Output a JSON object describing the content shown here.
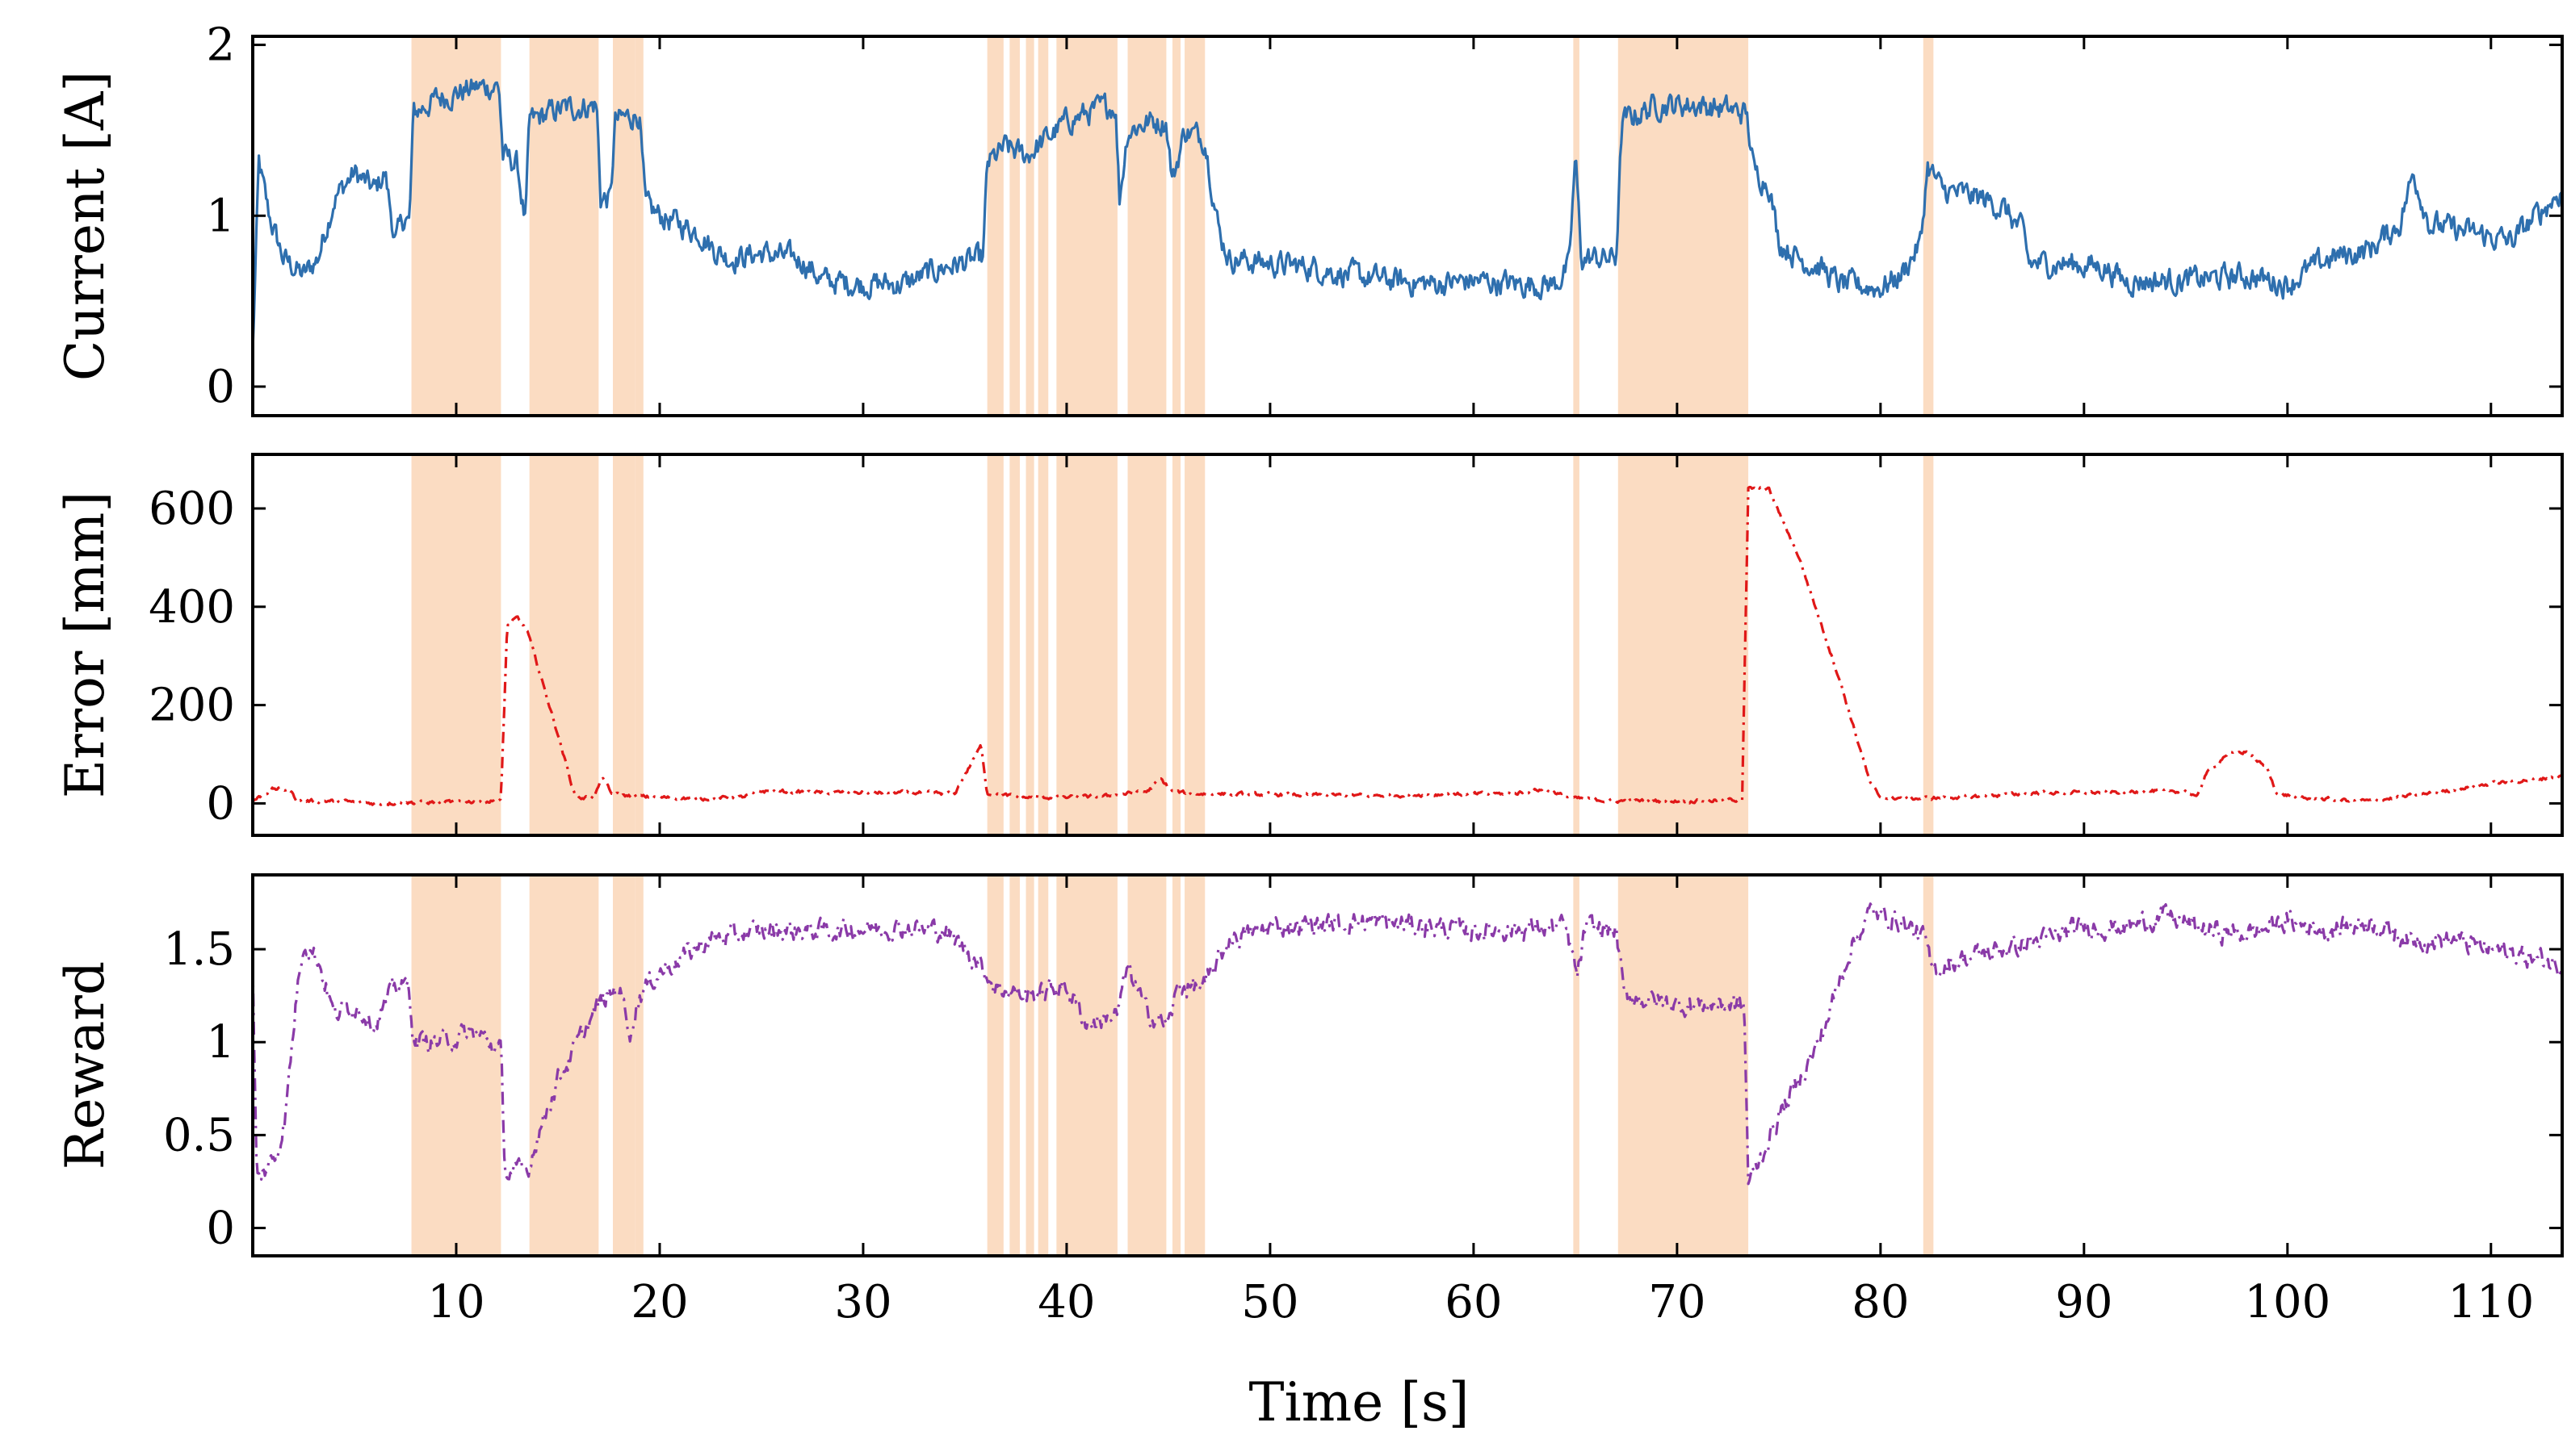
{
  "chart_data": {
    "type": "line",
    "xlabel": "Time [s]",
    "xlim": [
      0,
      113.5
    ],
    "x_ticks": [
      10,
      20,
      30,
      40,
      50,
      60,
      70,
      80,
      90,
      100,
      110
    ],
    "highlight_intervals": [
      [
        7.8,
        12.2
      ],
      [
        13.6,
        17.0
      ],
      [
        17.7,
        18.8
      ],
      [
        18.8,
        19.2
      ],
      [
        36.1,
        36.9
      ],
      [
        37.2,
        37.7
      ],
      [
        38.0,
        38.4
      ],
      [
        38.6,
        39.1
      ],
      [
        39.5,
        42.5
      ],
      [
        43.0,
        44.9
      ],
      [
        45.2,
        45.6
      ],
      [
        45.8,
        46.8
      ],
      [
        64.9,
        65.2
      ],
      [
        67.1,
        73.5
      ],
      [
        82.1,
        82.6
      ]
    ],
    "panels": [
      {
        "name": "current",
        "ylabel": "Current [A]",
        "ylim": [
          -0.17,
          2.05
        ],
        "y_ticks": [
          0,
          1,
          2
        ],
        "y_tick_labels": [
          "0",
          "1",
          "2"
        ],
        "series": {
          "name": "Current",
          "color": "#2e6fae",
          "dash": "",
          "noise": 0.06,
          "points": [
            [
              0,
              0.2
            ],
            [
              0.3,
              1.3
            ],
            [
              0.8,
              1.0
            ],
            [
              1.5,
              0.75
            ],
            [
              2.5,
              0.65
            ],
            [
              3.2,
              0.75
            ],
            [
              4.0,
              1.1
            ],
            [
              5.0,
              1.25
            ],
            [
              6.0,
              1.15
            ],
            [
              6.5,
              1.25
            ],
            [
              7.0,
              0.85
            ],
            [
              7.5,
              1.0
            ],
            [
              7.7,
              0.95
            ],
            [
              7.9,
              1.6
            ],
            [
              9,
              1.68
            ],
            [
              10,
              1.72
            ],
            [
              11,
              1.75
            ],
            [
              12.1,
              1.76
            ],
            [
              12.3,
              1.35
            ],
            [
              13.0,
              1.3
            ],
            [
              13.4,
              0.95
            ],
            [
              13.6,
              1.55
            ],
            [
              15,
              1.62
            ],
            [
              16.9,
              1.65
            ],
            [
              17.1,
              1.1
            ],
            [
              17.6,
              1.1
            ],
            [
              17.8,
              1.55
            ],
            [
              19.0,
              1.6
            ],
            [
              19.3,
              1.05
            ],
            [
              20,
              1.0
            ],
            [
              21,
              0.95
            ],
            [
              22,
              0.9
            ],
            [
              22.7,
              0.8
            ],
            [
              23.5,
              0.75
            ],
            [
              25,
              0.78
            ],
            [
              27,
              0.74
            ],
            [
              28,
              0.62
            ],
            [
              30,
              0.6
            ],
            [
              32,
              0.6
            ],
            [
              34,
              0.7
            ],
            [
              35.9,
              0.75
            ],
            [
              36.1,
              1.3
            ],
            [
              37,
              1.4
            ],
            [
              38,
              1.35
            ],
            [
              39,
              1.45
            ],
            [
              40,
              1.55
            ],
            [
              41,
              1.6
            ],
            [
              42.4,
              1.65
            ],
            [
              42.6,
              1.1
            ],
            [
              43,
              1.5
            ],
            [
              44,
              1.55
            ],
            [
              44.9,
              1.55
            ],
            [
              45.2,
              1.2
            ],
            [
              45.8,
              1.5
            ],
            [
              46.8,
              1.45
            ],
            [
              47.5,
              0.9
            ],
            [
              48,
              0.75
            ],
            [
              50,
              0.72
            ],
            [
              52,
              0.7
            ],
            [
              54,
              0.65
            ],
            [
              56,
              0.62
            ],
            [
              58,
              0.6
            ],
            [
              60,
              0.62
            ],
            [
              62,
              0.6
            ],
            [
              64,
              0.6
            ],
            [
              64.7,
              0.7
            ],
            [
              65.0,
              1.35
            ],
            [
              65.3,
              0.75
            ],
            [
              67.0,
              0.75
            ],
            [
              67.3,
              1.55
            ],
            [
              69,
              1.65
            ],
            [
              71,
              1.65
            ],
            [
              73.4,
              1.6
            ],
            [
              73.8,
              1.25
            ],
            [
              74.5,
              1.2
            ],
            [
              75.0,
              0.85
            ],
            [
              76,
              0.75
            ],
            [
              77,
              0.7
            ],
            [
              78,
              0.6
            ],
            [
              80,
              0.58
            ],
            [
              81,
              0.65
            ],
            [
              82.0,
              0.85
            ],
            [
              82.3,
              1.3
            ],
            [
              83,
              1.15
            ],
            [
              85,
              1.1
            ],
            [
              86,
              1.05
            ],
            [
              87,
              0.9
            ],
            [
              87.3,
              0.72
            ],
            [
              89,
              0.72
            ],
            [
              91,
              0.7
            ],
            [
              92,
              0.62
            ],
            [
              95,
              0.62
            ],
            [
              98,
              0.65
            ],
            [
              100,
              0.6
            ],
            [
              102,
              0.75
            ],
            [
              104,
              0.8
            ],
            [
              105.5,
              0.95
            ],
            [
              106.2,
              1.25
            ],
            [
              107,
              0.95
            ],
            [
              109,
              0.9
            ],
            [
              111,
              0.85
            ],
            [
              113.5,
              1.15
            ]
          ]
        }
      },
      {
        "name": "error",
        "ylabel": "Error [mm]",
        "ylim": [
          -65,
          710
        ],
        "y_ticks": [
          0,
          200,
          400,
          600
        ],
        "y_tick_labels": [
          "0",
          "200",
          "400",
          "600"
        ],
        "series": {
          "name": "Error",
          "color": "#e01818",
          "dash": "14 7 3 7",
          "noise": 3,
          "points": [
            [
              0,
              5
            ],
            [
              1,
              30
            ],
            [
              1.8,
              28
            ],
            [
              2.2,
              5
            ],
            [
              4,
              5
            ],
            [
              6,
              0
            ],
            [
              8,
              2
            ],
            [
              10,
              3
            ],
            [
              12.2,
              5
            ],
            [
              12.5,
              360
            ],
            [
              13,
              378
            ],
            [
              13.5,
              350
            ],
            [
              14,
              280
            ],
            [
              15,
              140
            ],
            [
              15.8,
              20
            ],
            [
              16.2,
              10
            ],
            [
              16.8,
              15
            ],
            [
              17.2,
              55
            ],
            [
              17.6,
              20
            ],
            [
              18.5,
              15
            ],
            [
              20,
              12
            ],
            [
              22,
              10
            ],
            [
              24,
              12
            ],
            [
              25,
              25
            ],
            [
              28,
              22
            ],
            [
              32,
              22
            ],
            [
              34.5,
              20
            ],
            [
              35.3,
              80
            ],
            [
              35.8,
              118
            ],
            [
              36.1,
              20
            ],
            [
              38,
              12
            ],
            [
              40,
              12
            ],
            [
              42,
              15
            ],
            [
              44,
              25
            ],
            [
              44.6,
              50
            ],
            [
              45.2,
              25
            ],
            [
              46,
              20
            ],
            [
              50,
              18
            ],
            [
              55,
              16
            ],
            [
              58,
              18
            ],
            [
              62,
              20
            ],
            [
              63.5,
              30
            ],
            [
              64.5,
              15
            ],
            [
              65,
              10
            ],
            [
              67,
              5
            ],
            [
              69,
              5
            ],
            [
              71,
              5
            ],
            [
              73.2,
              8
            ],
            [
              73.5,
              640
            ],
            [
              74.5,
              640
            ],
            [
              76,
              500
            ],
            [
              78,
              250
            ],
            [
              79.5,
              40
            ],
            [
              80,
              12
            ],
            [
              82,
              10
            ],
            [
              85,
              15
            ],
            [
              88,
              22
            ],
            [
              91,
              22
            ],
            [
              93,
              25
            ],
            [
              95,
              25
            ],
            [
              95.5,
              10
            ],
            [
              96,
              60
            ],
            [
              97,
              100
            ],
            [
              98,
              105
            ],
            [
              99,
              70
            ],
            [
              99.5,
              20
            ],
            [
              101,
              10
            ],
            [
              104,
              5
            ],
            [
              107,
              20
            ],
            [
              110,
              40
            ],
            [
              113.5,
              55
            ]
          ]
        }
      },
      {
        "name": "reward",
        "ylabel": "Reward",
        "ylim": [
          -0.15,
          1.9
        ],
        "y_ticks": [
          0,
          0.5,
          1,
          1.5
        ],
        "y_tick_labels": [
          "0",
          "0.5",
          "1",
          "1.5"
        ],
        "series": {
          "name": "Reward",
          "color": "#8a3aa8",
          "dash": "16 8 3 8",
          "noise": 0.045,
          "points": [
            [
              0,
              1.4
            ],
            [
              0.2,
              0.25
            ],
            [
              1.2,
              0.4
            ],
            [
              1.6,
              0.6
            ],
            [
              2.2,
              1.3
            ],
            [
              2.5,
              1.55
            ],
            [
              3.2,
              1.45
            ],
            [
              4,
              1.15
            ],
            [
              5,
              1.2
            ],
            [
              6,
              1.1
            ],
            [
              7,
              1.3
            ],
            [
              7.7,
              1.3
            ],
            [
              7.9,
              1.0
            ],
            [
              9,
              1.0
            ],
            [
              11,
              1.05
            ],
            [
              12.2,
              0.95
            ],
            [
              12.4,
              0.3
            ],
            [
              13.5,
              0.3
            ],
            [
              14,
              0.5
            ],
            [
              15,
              0.8
            ],
            [
              16,
              1.0
            ],
            [
              17,
              1.2
            ],
            [
              18,
              1.3
            ],
            [
              18.6,
              1.05
            ],
            [
              19,
              1.25
            ],
            [
              20,
              1.38
            ],
            [
              21,
              1.45
            ],
            [
              22.5,
              1.55
            ],
            [
              25,
              1.6
            ],
            [
              28,
              1.6
            ],
            [
              32,
              1.62
            ],
            [
              34,
              1.6
            ],
            [
              35.5,
              1.45
            ],
            [
              36.5,
              1.3
            ],
            [
              38,
              1.25
            ],
            [
              40,
              1.3
            ],
            [
              41,
              1.1
            ],
            [
              42.5,
              1.15
            ],
            [
              43.0,
              1.4
            ],
            [
              44,
              1.15
            ],
            [
              45,
              1.1
            ],
            [
              45.5,
              1.3
            ],
            [
              46.8,
              1.3
            ],
            [
              48,
              1.55
            ],
            [
              50,
              1.62
            ],
            [
              55,
              1.65
            ],
            [
              60,
              1.6
            ],
            [
              64.5,
              1.62
            ],
            [
              65.1,
              1.35
            ],
            [
              65.5,
              1.62
            ],
            [
              67.0,
              1.6
            ],
            [
              67.4,
              1.25
            ],
            [
              70,
              1.2
            ],
            [
              73.3,
              1.2
            ],
            [
              73.5,
              0.25
            ],
            [
              74,
              0.35
            ],
            [
              75,
              0.6
            ],
            [
              77,
              1.0
            ],
            [
              78.5,
              1.5
            ],
            [
              79.5,
              1.7
            ],
            [
              81,
              1.65
            ],
            [
              82.2,
              1.55
            ],
            [
              82.5,
              1.38
            ],
            [
              84,
              1.45
            ],
            [
              86,
              1.5
            ],
            [
              88,
              1.55
            ],
            [
              90,
              1.62
            ],
            [
              92,
              1.62
            ],
            [
              94,
              1.68
            ],
            [
              96,
              1.6
            ],
            [
              98,
              1.58
            ],
            [
              100,
              1.65
            ],
            [
              102,
              1.6
            ],
            [
              104,
              1.65
            ],
            [
              106,
              1.55
            ],
            [
              108,
              1.55
            ],
            [
              110,
              1.5
            ],
            [
              113.5,
              1.42
            ]
          ]
        }
      }
    ]
  },
  "colors": {
    "highlight": "#fbdcc2",
    "frame": "#000000"
  }
}
